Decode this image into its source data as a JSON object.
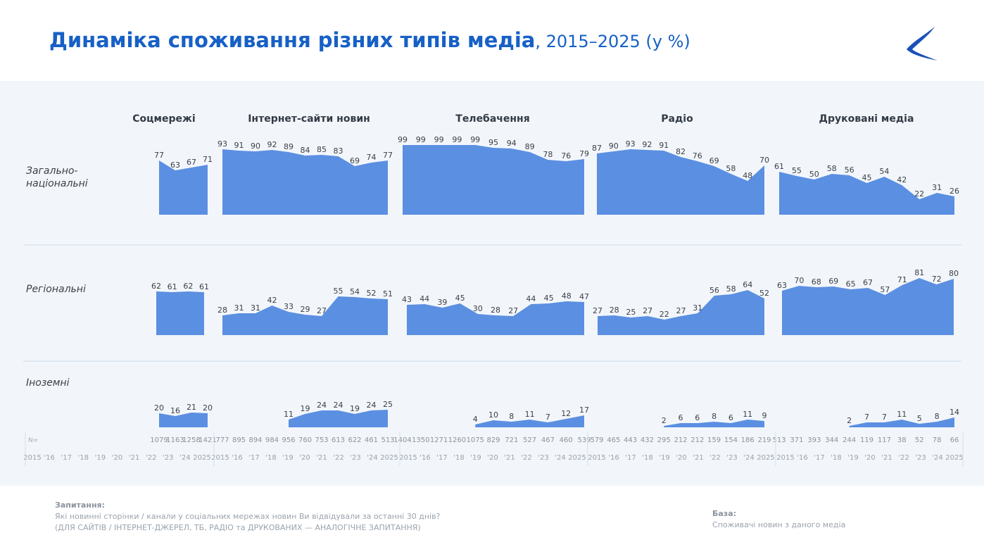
{
  "header": {
    "title_main": "Динаміка споживання різних типів медіа",
    "title_sub": ", 2015–2025 (у %)"
  },
  "colors": {
    "accent": "#1760c6",
    "area": "#5b8fe1",
    "panel": "#f2f6fb"
  },
  "chart_data": {
    "type": "area",
    "categories": [
      "Соцмережі",
      "Інтернет-сайти новин",
      "Телебачення",
      "Радіо",
      "Друковані медіа"
    ],
    "rows": [
      "Загально-\nнаціональні",
      "Регіональні",
      "Іноземні"
    ],
    "year_labels": [
      "2015",
      "'16",
      "'17",
      "'18",
      "'19",
      "'20",
      "'21",
      "'22",
      "'23",
      "'24",
      "2025"
    ],
    "n_label": "N=",
    "panels": [
      {
        "name": "Соцмережі",
        "years": [
          "'22",
          "'23",
          "'24",
          "2025"
        ],
        "n": [
          "1079",
          "1163",
          "1258",
          "1421"
        ],
        "series": {
          "national": [
            77,
            63,
            67,
            71
          ],
          "regional": [
            62,
            61,
            62,
            61
          ],
          "foreign": [
            20,
            16,
            21,
            20
          ]
        }
      },
      {
        "name": "Інтернет-сайти новин",
        "years": [
          "2015",
          "'16",
          "'17",
          "'18",
          "'19",
          "'20",
          "'21",
          "'22",
          "'23",
          "'24",
          "2025"
        ],
        "n": [
          "777",
          "895",
          "894",
          "984",
          "956",
          "760",
          "753",
          "613",
          "622",
          "461",
          "513"
        ],
        "series": {
          "national": [
            93,
            91,
            90,
            92,
            89,
            84,
            85,
            83,
            69,
            74,
            77
          ],
          "regional": [
            28,
            31,
            31,
            42,
            33,
            29,
            27,
            55,
            54,
            52,
            51
          ],
          "foreign": [
            null,
            null,
            null,
            null,
            11,
            19,
            24,
            24,
            19,
            24,
            25
          ]
        }
      },
      {
        "name": "Телебачення",
        "years": [
          "2015",
          "'16",
          "'17",
          "'18",
          "'19",
          "'20",
          "'21",
          "'22",
          "'23",
          "'24",
          "2025"
        ],
        "n": [
          "1404",
          "1350",
          "1271",
          "1260",
          "1075",
          "829",
          "721",
          "527",
          "467",
          "460",
          "539"
        ],
        "series": {
          "national": [
            99,
            99,
            99,
            99,
            99,
            95,
            94,
            89,
            78,
            76,
            79
          ],
          "regional": [
            43,
            44,
            39,
            45,
            30,
            28,
            27,
            44,
            45,
            48,
            47
          ],
          "foreign": [
            null,
            null,
            null,
            null,
            4,
            10,
            8,
            11,
            7,
            12,
            17
          ]
        }
      },
      {
        "name": "Радіо",
        "years": [
          "2015",
          "'16",
          "'17",
          "'18",
          "'19",
          "'20",
          "'21",
          "'22",
          "'23",
          "'24",
          "2025"
        ],
        "n": [
          "579",
          "465",
          "443",
          "432",
          "295",
          "212",
          "212",
          "159",
          "154",
          "186",
          "219"
        ],
        "series": {
          "national": [
            87,
            90,
            93,
            92,
            91,
            82,
            76,
            69,
            58,
            48,
            70
          ],
          "regional": [
            27,
            28,
            25,
            27,
            22,
            27,
            31,
            56,
            58,
            64,
            52
          ],
          "foreign": [
            null,
            null,
            null,
            null,
            2,
            6,
            6,
            8,
            6,
            11,
            9
          ]
        }
      },
      {
        "name": "Друковані медіа",
        "years": [
          "2015",
          "'16",
          "'17",
          "'18",
          "'19",
          "'20",
          "'21",
          "'22",
          "'23",
          "'24",
          "2025"
        ],
        "n": [
          "513",
          "371",
          "393",
          "344",
          "244",
          "119",
          "117",
          "38",
          "52",
          "78",
          "66"
        ],
        "series": {
          "national": [
            61,
            55,
            50,
            58,
            56,
            45,
            54,
            42,
            22,
            31,
            26
          ],
          "regional": [
            63,
            70,
            68,
            69,
            65,
            67,
            57,
            71,
            81,
            72,
            80
          ],
          "foreign": [
            null,
            null,
            null,
            null,
            2,
            7,
            7,
            11,
            5,
            8,
            14
          ]
        }
      }
    ],
    "ylim": [
      0,
      100
    ],
    "grid": false
  },
  "footer": {
    "question_label": "Запитання:",
    "question_line1": "Які новинні сторінки / канали у соціальних мережах новин Ви відвідували за останні 30 днів?",
    "question_line2": "(ДЛЯ САЙТІВ / ІНТЕРНЕТ-ДЖЕРЕЛ, ТБ, РАДІО та ДРУКОВАНИХ — АНАЛОГІЧНЕ ЗАПИТАННЯ)",
    "base_label": "База:",
    "base_text": "Споживачі новин з даного медіа"
  }
}
